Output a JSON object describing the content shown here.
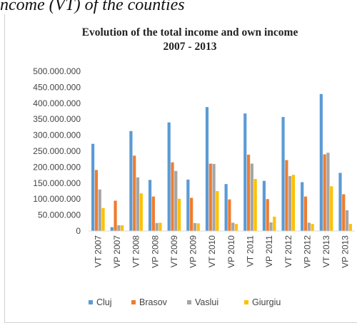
{
  "caption": "ncome (VT) of the counties",
  "chart_data": {
    "type": "bar",
    "title": [
      "Evolution of the total income and own income",
      "2007 - 2013"
    ],
    "categories": [
      "VT 2007",
      "VP 2007",
      "VT 2008",
      "VP 2008",
      "VT 2009",
      "VP 2009",
      "VT 2010",
      "VP 2010",
      "VT 2011",
      "VP 2011",
      "VT 2012",
      "VP 2012",
      "VT 2013",
      "VP 2013"
    ],
    "ylim": [
      0,
      500000000
    ],
    "yticks": [
      0,
      50000000,
      100000000,
      150000000,
      200000000,
      250000000,
      300000000,
      350000000,
      400000000,
      450000000,
      500000000
    ],
    "ytick_labels": [
      "0",
      "50.000.000",
      "100.000.000",
      "150.000.000",
      "200.000.000",
      "250.000.000",
      "300.000.000",
      "350.000.000",
      "400.000.000",
      "450.000.000",
      "500.000.000"
    ],
    "grid": false,
    "legend_position": "bottom",
    "series": [
      {
        "name": "Cluj",
        "color": "#5b9bd5",
        "values": [
          273000000,
          12000000,
          313000000,
          160000000,
          340000000,
          161000000,
          388000000,
          147000000,
          368000000,
          157000000,
          357000000,
          153000000,
          429000000,
          182000000
        ]
      },
      {
        "name": "Brasov",
        "color": "#ed7d31",
        "values": [
          191000000,
          95000000,
          236000000,
          108000000,
          215000000,
          104000000,
          211000000,
          99000000,
          239000000,
          100000000,
          222000000,
          108000000,
          240000000,
          115000000
        ]
      },
      {
        "name": "Vaslui",
        "color": "#a5a5a5",
        "values": [
          130000000,
          18000000,
          168000000,
          25000000,
          188000000,
          25000000,
          210000000,
          26000000,
          211000000,
          27000000,
          172000000,
          26000000,
          245000000,
          65000000
        ]
      },
      {
        "name": "Giurgiu",
        "color": "#ffc000",
        "values": [
          72000000,
          18000000,
          118000000,
          26000000,
          101000000,
          24000000,
          125000000,
          22000000,
          163000000,
          45000000,
          176000000,
          22000000,
          140000000,
          22000000
        ]
      }
    ]
  }
}
